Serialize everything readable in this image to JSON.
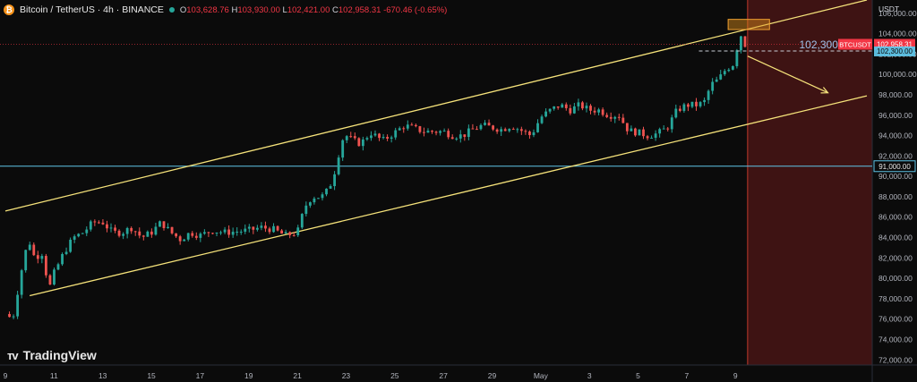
{
  "header": {
    "symbol_title": "Bitcoin / TetherUS · 4h · BINANCE",
    "open_label": "O",
    "open": "103,628.76",
    "high_label": "H",
    "high": "103,930.00",
    "low_label": "L",
    "low": "102,421.00",
    "close_label": "C",
    "close": "102,958.31",
    "change": "-670.46 (-0.65%)"
  },
  "logo": {
    "text": "TradingView"
  },
  "colors": {
    "background": "#0b0b0b",
    "bull": "#26a69a",
    "bear": "#ef5350",
    "channel": "#f5e27a",
    "support_line": "#5fc5e8",
    "target_zone": "#6a1c1c",
    "price_label": "#f23645"
  },
  "chart_data": {
    "type": "candlestick",
    "symbol": "BTCUSDT",
    "interval": "4h",
    "currency_label": "USDT",
    "y_ticks": [
      "106,000.00",
      "104,000.00",
      "102,000.00",
      "100,000.00",
      "98,000.00",
      "96,000.00",
      "94,000.00",
      "92,000.00",
      "90,000.00",
      "88,000.00",
      "86,000.00",
      "84,000.00",
      "82,000.00",
      "80,000.00",
      "78,000.00",
      "76,000.00",
      "74,000.00",
      "72,000.00"
    ],
    "y_range": [
      71500,
      107300
    ],
    "x_ticks": [
      {
        "label": "9",
        "day": 0
      },
      {
        "label": "11",
        "day": 2
      },
      {
        "label": "13",
        "day": 4
      },
      {
        "label": "15",
        "day": 6
      },
      {
        "label": "17",
        "day": 8
      },
      {
        "label": "19",
        "day": 10
      },
      {
        "label": "21",
        "day": 12
      },
      {
        "label": "23",
        "day": 14
      },
      {
        "label": "25",
        "day": 16
      },
      {
        "label": "27",
        "day": 18
      },
      {
        "label": "29",
        "day": 20
      },
      {
        "label": "May",
        "day": 22
      },
      {
        "label": "3",
        "day": 24
      },
      {
        "label": "5",
        "day": 26
      },
      {
        "label": "7",
        "day": 28
      },
      {
        "label": "9",
        "day": 30
      }
    ],
    "x_range_days": [
      0,
      35.4
    ],
    "price_path": [
      [
        0,
        76500
      ],
      [
        0.3,
        76000
      ],
      [
        0.6,
        80000
      ],
      [
        0.8,
        82500
      ],
      [
        1,
        83500
      ],
      [
        1.2,
        82000
      ],
      [
        1.5,
        82500
      ],
      [
        1.8,
        79000
      ],
      [
        2,
        80500
      ],
      [
        2.4,
        82500
      ],
      [
        2.8,
        84000
      ],
      [
        3.2,
        84500
      ],
      [
        3.6,
        85500
      ],
      [
        4,
        85500
      ],
      [
        4.4,
        84500
      ],
      [
        4.8,
        84500
      ],
      [
        5.2,
        85000
      ],
      [
        5.6,
        84000
      ],
      [
        6,
        84500
      ],
      [
        6.4,
        85500
      ],
      [
        6.8,
        84500
      ],
      [
        7.2,
        83800
      ],
      [
        7.6,
        84500
      ],
      [
        8,
        84200
      ],
      [
        8.5,
        84700
      ],
      [
        9,
        84500
      ],
      [
        9.5,
        84600
      ],
      [
        10,
        84700
      ],
      [
        10.5,
        85000
      ],
      [
        11,
        84800
      ],
      [
        11.5,
        84200
      ],
      [
        12,
        84500
      ],
      [
        12.3,
        87000
      ],
      [
        12.6,
        88000
      ],
      [
        13,
        88000
      ],
      [
        13.3,
        88800
      ],
      [
        13.6,
        91000
      ],
      [
        13.8,
        93500
      ],
      [
        14,
        94000
      ],
      [
        14.3,
        93500
      ],
      [
        14.6,
        93200
      ],
      [
        15,
        94300
      ],
      [
        15.5,
        93500
      ],
      [
        16,
        94300
      ],
      [
        16.4,
        95000
      ],
      [
        16.8,
        94700
      ],
      [
        17.2,
        94400
      ],
      [
        17.6,
        94400
      ],
      [
        18,
        94400
      ],
      [
        18.4,
        94000
      ],
      [
        18.8,
        94000
      ],
      [
        19.2,
        94600
      ],
      [
        19.6,
        95000
      ],
      [
        20,
        94800
      ],
      [
        20.4,
        94600
      ],
      [
        20.8,
        95000
      ],
      [
        21.2,
        94500
      ],
      [
        21.6,
        94000
      ],
      [
        22,
        95800
      ],
      [
        22.4,
        96500
      ],
      [
        22.8,
        97000
      ],
      [
        23.2,
        96500
      ],
      [
        23.6,
        97000
      ],
      [
        24,
        96500
      ],
      [
        24.4,
        96500
      ],
      [
        24.8,
        96000
      ],
      [
        25.2,
        96000
      ],
      [
        25.6,
        94500
      ],
      [
        26,
        94300
      ],
      [
        26.4,
        94000
      ],
      [
        26.8,
        94200
      ],
      [
        27.2,
        94800
      ],
      [
        27.6,
        96500
      ],
      [
        28,
        97000
      ],
      [
        28.4,
        97000
      ],
      [
        28.7,
        97200
      ],
      [
        29,
        99000
      ],
      [
        29.3,
        99500
      ],
      [
        29.6,
        100500
      ],
      [
        29.9,
        101000
      ],
      [
        30.2,
        104000
      ],
      [
        30.4,
        102900
      ]
    ],
    "candle_step_days": 0.167,
    "channel_upper": {
      "from": [
        0,
        86600
      ],
      "to": [
        35.4,
        107300
      ]
    },
    "channel_lower": {
      "from": [
        1,
        78300
      ],
      "to": [
        35.4,
        97900
      ]
    },
    "horizontal_line": {
      "value": 91000,
      "label": "91,000.00"
    },
    "target_line": {
      "value": 102300,
      "label": "102,300",
      "from_day": 28.5
    },
    "last_price": {
      "symbol_label": "BTCUSDT",
      "value_label": "102,958.31",
      "countdown": "102,300.00"
    },
    "projection_arrow": {
      "from": [
        30.5,
        101800
      ],
      "to": [
        33.8,
        98200
      ]
    },
    "shaded_zone_from_day": 30.5,
    "top_box": {
      "from": [
        29.7,
        104400
      ],
      "to": [
        31.4,
        105400
      ]
    }
  }
}
